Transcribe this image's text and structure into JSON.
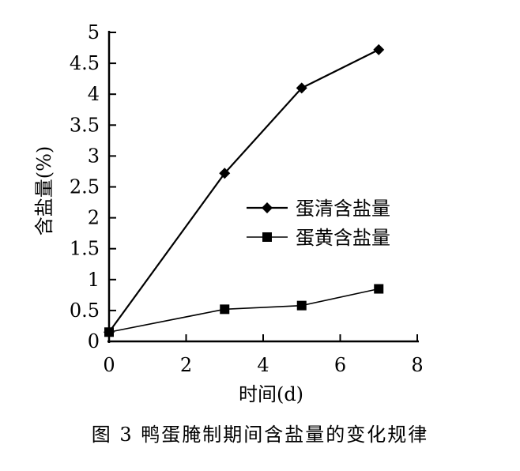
{
  "caption": "图 3   鸭蛋腌制期间含盐量的变化规律",
  "chart_data": {
    "type": "line",
    "title": "",
    "xlabel": "时间(d)",
    "ylabel": "含盐量(%)",
    "xlim": [
      0,
      8
    ],
    "ylim": [
      0,
      5
    ],
    "xticks": [
      0,
      2,
      4,
      6,
      8
    ],
    "xtick_labels": [
      "0",
      "2",
      "4",
      "6",
      "8"
    ],
    "yticks": [
      0,
      0.5,
      1,
      1.5,
      2,
      2.5,
      3,
      3.5,
      4,
      4.5,
      5
    ],
    "ytick_labels": [
      "0",
      "0.5",
      "1",
      "1.5",
      "2",
      "2.5",
      "3",
      "3.5",
      "4",
      "4.5",
      "5"
    ],
    "grid": false,
    "legend_position": "center-right",
    "series": [
      {
        "name": "蛋清含盐量",
        "marker": "diamond",
        "color": "#000000",
        "x": [
          0,
          3,
          5,
          7
        ],
        "y": [
          0.15,
          2.72,
          4.1,
          4.72
        ]
      },
      {
        "name": "蛋黄含盐量",
        "marker": "square",
        "color": "#000000",
        "x": [
          0,
          3,
          5,
          7
        ],
        "y": [
          0.15,
          0.52,
          0.58,
          0.85
        ]
      }
    ]
  }
}
